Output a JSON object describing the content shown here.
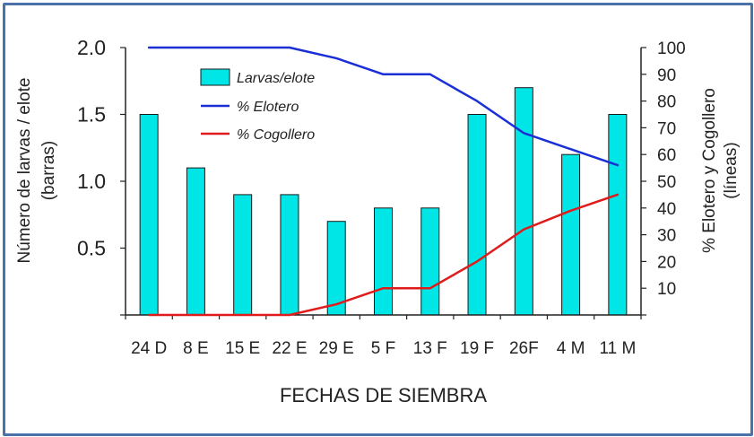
{
  "chart_data": {
    "type": "bar",
    "categories": [
      "24 D",
      "8 E",
      "15 E",
      "22 E",
      "29 E",
      "5 F",
      "13 F",
      "19 F",
      "26F",
      "4 M",
      "11 M"
    ],
    "xlabel": "FECHAS DE SIEMBRA",
    "ylabel_left": [
      "Número de larvas / elote",
      "(barras)"
    ],
    "ylabel_right": [
      "% Elotero y Cogollero",
      "(líneas)"
    ],
    "ylim_left": [
      0,
      2.0
    ],
    "ylim_right": [
      0,
      100
    ],
    "yticks_left": [
      "0.5",
      "1.0",
      "1.5",
      "2.0"
    ],
    "yticks_left_values": [
      0.5,
      1.0,
      1.5,
      2.0
    ],
    "yticks_right": [
      "10",
      "20",
      "30",
      "40",
      "50",
      "60",
      "70",
      "80",
      "90",
      "100"
    ],
    "yticks_right_values": [
      10,
      20,
      30,
      40,
      50,
      60,
      70,
      80,
      90,
      100
    ],
    "grid": false,
    "legend_position": "top-left",
    "series": [
      {
        "name": "Larvas/elote",
        "type": "bar",
        "axis": "left",
        "color": "#00e5e5",
        "values": [
          1.5,
          1.1,
          0.9,
          0.9,
          0.7,
          0.8,
          0.8,
          1.5,
          1.7,
          1.2,
          1.5
        ]
      },
      {
        "name": "% Elotero",
        "type": "line",
        "axis": "right",
        "color": "#1a2fd6",
        "values": [
          100,
          100,
          100,
          100,
          96,
          90,
          90,
          80,
          68,
          62,
          56
        ]
      },
      {
        "name": "% Cogollero",
        "type": "line",
        "axis": "right",
        "color": "#e01b1b",
        "values": [
          0,
          0,
          0,
          0,
          4,
          10,
          10,
          20,
          32,
          39,
          45
        ]
      }
    ]
  }
}
